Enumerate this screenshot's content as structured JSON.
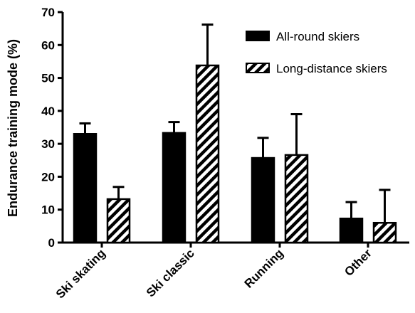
{
  "chart_data": {
    "type": "bar",
    "title": "",
    "xlabel": "",
    "ylabel": "Endurance training mode (%)",
    "ylim": [
      0,
      70
    ],
    "yticks": [
      0,
      10,
      20,
      30,
      40,
      50,
      60,
      70
    ],
    "categories": [
      "Ski skating",
      "Ski classic",
      "Running",
      "Other"
    ],
    "series": [
      {
        "name": "All-round skiers",
        "fill": "solid",
        "values": [
          33,
          33.3,
          25.7,
          7.3
        ],
        "error": [
          3.2,
          3.3,
          6.1,
          5.0
        ]
      },
      {
        "name": "Long-distance skiers",
        "fill": "hatched",
        "values": [
          13.2,
          53.8,
          26.6,
          6.0
        ],
        "error": [
          3.7,
          12.4,
          12.4,
          10.0
        ]
      }
    ],
    "legend_position": "top-right",
    "grid": false,
    "colors": {
      "bar": "#000000",
      "hatch_bg": "#ffffff"
    }
  }
}
